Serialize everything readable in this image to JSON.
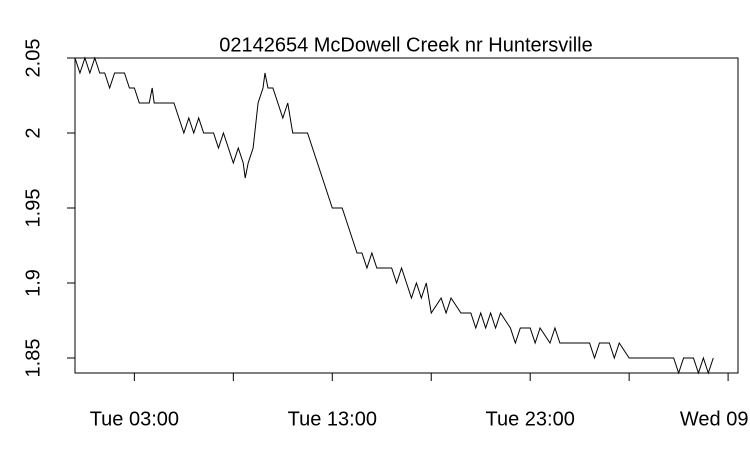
{
  "chart_data": {
    "type": "line",
    "title": "02142654 McDowell Creek nr Huntersville",
    "x": [
      0,
      0.25,
      0.5,
      0.75,
      1.0,
      1.25,
      1.5,
      1.75,
      2.0,
      2.5,
      2.75,
      3.0,
      3.25,
      3.75,
      3.9,
      4.0,
      5.0,
      5.25,
      5.5,
      5.75,
      6.0,
      6.25,
      6.5,
      7.0,
      7.25,
      7.5,
      7.75,
      8.0,
      8.25,
      8.5,
      8.6,
      8.75,
      9.0,
      9.25,
      9.5,
      9.6,
      9.75,
      10.0,
      10.25,
      10.5,
      10.75,
      11.0,
      11.5,
      11.75,
      12.0,
      12.25,
      12.5,
      12.75,
      13.0,
      13.5,
      13.75,
      14.0,
      14.25,
      14.5,
      14.75,
      15.0,
      15.25,
      16.0,
      16.25,
      16.5,
      16.75,
      17.0,
      17.25,
      17.5,
      17.75,
      18.0,
      18.5,
      18.75,
      19.0,
      19.5,
      20.0,
      20.25,
      20.5,
      20.75,
      21.0,
      21.25,
      21.5,
      22.0,
      22.25,
      22.5,
      23.0,
      23.25,
      23.5,
      24.0,
      24.25,
      24.5,
      26.0,
      26.25,
      26.5,
      27.0,
      27.25,
      27.5,
      28.0,
      30.25,
      30.5,
      30.75,
      31.25,
      31.5,
      31.75,
      32.0,
      32.25
    ],
    "series": [
      {
        "color": "#000000",
        "values": [
          2.05,
          2.04,
          2.05,
          2.04,
          2.05,
          2.04,
          2.04,
          2.03,
          2.04,
          2.04,
          2.03,
          2.03,
          2.02,
          2.02,
          2.03,
          2.02,
          2.02,
          2.01,
          2.0,
          2.01,
          2.0,
          2.01,
          2.0,
          2.0,
          1.99,
          2.0,
          1.99,
          1.98,
          1.99,
          1.98,
          1.97,
          1.98,
          1.99,
          2.02,
          2.03,
          2.04,
          2.03,
          2.03,
          2.02,
          2.01,
          2.02,
          2.0,
          2.0,
          2.0,
          1.99,
          1.98,
          1.97,
          1.96,
          1.95,
          1.95,
          1.94,
          1.93,
          1.92,
          1.92,
          1.91,
          1.92,
          1.91,
          1.91,
          1.9,
          1.91,
          1.9,
          1.89,
          1.9,
          1.89,
          1.9,
          1.88,
          1.89,
          1.88,
          1.89,
          1.88,
          1.88,
          1.87,
          1.88,
          1.87,
          1.88,
          1.87,
          1.88,
          1.87,
          1.86,
          1.87,
          1.87,
          1.86,
          1.87,
          1.86,
          1.87,
          1.86,
          1.86,
          1.85,
          1.86,
          1.86,
          1.85,
          1.86,
          1.85,
          1.85,
          1.84,
          1.85,
          1.85,
          1.84,
          1.85,
          1.84,
          1.85
        ]
      }
    ],
    "xlim": [
      0,
      33.5
    ],
    "xticks": [
      {
        "value": 3,
        "label": "Tue 03:00"
      },
      8,
      {
        "value": 13,
        "label": "Tue 13:00"
      },
      18,
      {
        "value": 23,
        "label": "Tue 23:00"
      },
      28,
      {
        "value": 33,
        "label": "Wed 09:00"
      }
    ],
    "ylim": [
      1.84,
      2.05
    ],
    "yticks": [
      1.85,
      1.9,
      1.95,
      2.0,
      2.05
    ]
  }
}
